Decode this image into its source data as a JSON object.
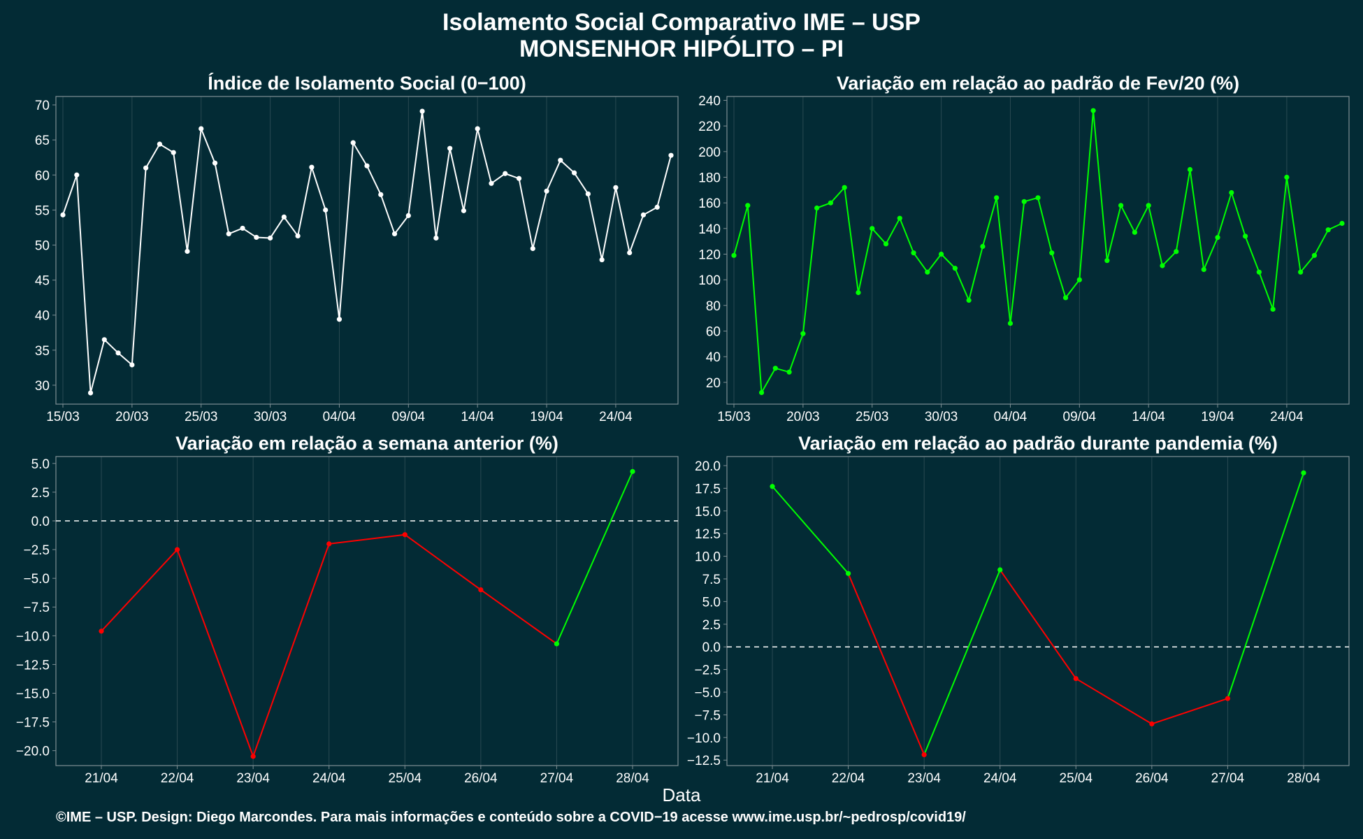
{
  "title_line1": "Isolamento Social Comparativo IME – USP",
  "title_line2": "MONSENHOR HIPÓLITO – PI",
  "xaxis_title": "Data",
  "footer": "©IME – USP. Design: Diego Marcondes. Para mais informações e conteúdo sobre a COVID−19 acesse www.ime.usp.br/~pedrosp/covid19/",
  "colors": {
    "background": "#032b35",
    "white_series": "#ffffff",
    "green": "#00ff00",
    "red": "#ff0000",
    "axis_frame": "#7f8f94",
    "grid": "#2a4a52"
  },
  "chart_data": [
    {
      "id": "isolation",
      "type": "line",
      "title": "Índice de Isolamento Social (0−100)",
      "x_start": "2020-03-15",
      "x_ticks": [
        "15/03",
        "20/03",
        "25/03",
        "30/03",
        "04/04",
        "09/04",
        "14/04",
        "19/04",
        "24/04"
      ],
      "ylim": [
        27.3,
        71.2
      ],
      "y_ticks": [
        30,
        35,
        40,
        45,
        50,
        55,
        60,
        65,
        70
      ],
      "color": "#ffffff",
      "values": [
        54.3,
        60.0,
        28.9,
        36.5,
        34.6,
        32.9,
        61.0,
        64.4,
        63.2,
        49.1,
        66.6,
        61.7,
        51.6,
        52.4,
        51.1,
        51.0,
        54.0,
        51.3,
        61.1,
        55.0,
        39.4,
        64.6,
        61.3,
        57.2,
        51.6,
        54.2,
        69.1,
        51.0,
        63.8,
        54.9,
        66.6,
        58.8,
        60.2,
        59.5,
        49.5,
        57.7,
        62.1,
        60.3,
        57.3,
        47.9,
        58.2,
        48.9,
        54.3,
        55.4,
        62.8
      ]
    },
    {
      "id": "feb-pattern",
      "type": "line",
      "title": "Variação em relação ao padrão de Fev/20 (%)",
      "x_start": "2020-03-15",
      "x_ticks": [
        "15/03",
        "20/03",
        "25/03",
        "30/03",
        "04/04",
        "09/04",
        "14/04",
        "19/04",
        "24/04"
      ],
      "ylim": [
        3,
        243
      ],
      "y_ticks": [
        20,
        40,
        60,
        80,
        100,
        120,
        140,
        160,
        180,
        200,
        220,
        240
      ],
      "color": "#00ff00",
      "values": [
        119,
        158,
        12,
        31,
        28,
        58,
        156,
        160,
        172,
        90,
        140,
        128,
        148,
        121,
        106,
        120,
        109,
        84,
        126,
        164,
        66,
        161,
        164,
        121,
        86,
        100,
        232,
        115,
        158,
        137,
        158,
        111,
        122,
        186,
        108,
        133,
        168,
        134,
        106,
        77,
        180,
        106,
        119,
        139,
        144
      ]
    },
    {
      "id": "week-before",
      "type": "line",
      "title": "Variação em relação a semana anterior (%)",
      "categories": [
        "21/04",
        "22/04",
        "23/04",
        "24/04",
        "25/04",
        "26/04",
        "27/04",
        "28/04"
      ],
      "values": [
        -9.6,
        -2.5,
        -20.5,
        -2.0,
        -1.2,
        -6.0,
        -10.7,
        4.3
      ],
      "ylim": [
        -21.3,
        5.6
      ],
      "y_ticks": [
        5.0,
        2.5,
        0.0,
        -2.5,
        -5.0,
        -7.5,
        -10.0,
        -12.5,
        -15.0,
        -17.5,
        -20.0
      ],
      "y_tick_labels": [
        "5.0",
        "2.5",
        "0.0",
        "−2.5",
        "−5.0",
        "−7.5",
        "−10.0",
        "−12.5",
        "−15.0",
        "−17.5",
        "−20.0"
      ],
      "reference_line": 0,
      "segment_colors": [
        "#ff0000",
        "#ff0000",
        "#ff0000",
        "#ff0000",
        "#ff0000",
        "#ff0000",
        "#00ff00"
      ],
      "point_colors": [
        "#ff0000",
        "#ff0000",
        "#ff0000",
        "#ff0000",
        "#ff0000",
        "#ff0000",
        "#00ff00",
        "#00ff00"
      ]
    },
    {
      "id": "pandemic-pattern",
      "type": "line",
      "title": "Variação em relação ao padrão durante pandemia (%)",
      "categories": [
        "21/04",
        "22/04",
        "23/04",
        "24/04",
        "25/04",
        "26/04",
        "27/04",
        "28/04"
      ],
      "values": [
        17.7,
        8.1,
        -11.9,
        8.5,
        -3.5,
        -8.5,
        -5.7,
        19.2
      ],
      "ylim": [
        -13.1,
        21.0
      ],
      "y_ticks": [
        20.0,
        17.5,
        15.0,
        12.5,
        10.0,
        7.5,
        5.0,
        2.5,
        0.0,
        -2.5,
        -5.0,
        -7.5,
        -10.0,
        -12.5
      ],
      "y_tick_labels": [
        "20.0",
        "17.5",
        "15.0",
        "12.5",
        "10.0",
        "7.5",
        "5.0",
        "2.5",
        "0.0",
        "−2.5",
        "−5.0",
        "−7.5",
        "−10.0",
        "−12.5"
      ],
      "reference_line": 0,
      "segment_colors": [
        "#00ff00",
        "#ff0000",
        "#00ff00",
        "#ff0000",
        "#ff0000",
        "#ff0000",
        "#00ff00"
      ],
      "point_colors": [
        "#00ff00",
        "#00ff00",
        "#ff0000",
        "#00ff00",
        "#ff0000",
        "#ff0000",
        "#ff0000",
        "#00ff00"
      ]
    }
  ]
}
